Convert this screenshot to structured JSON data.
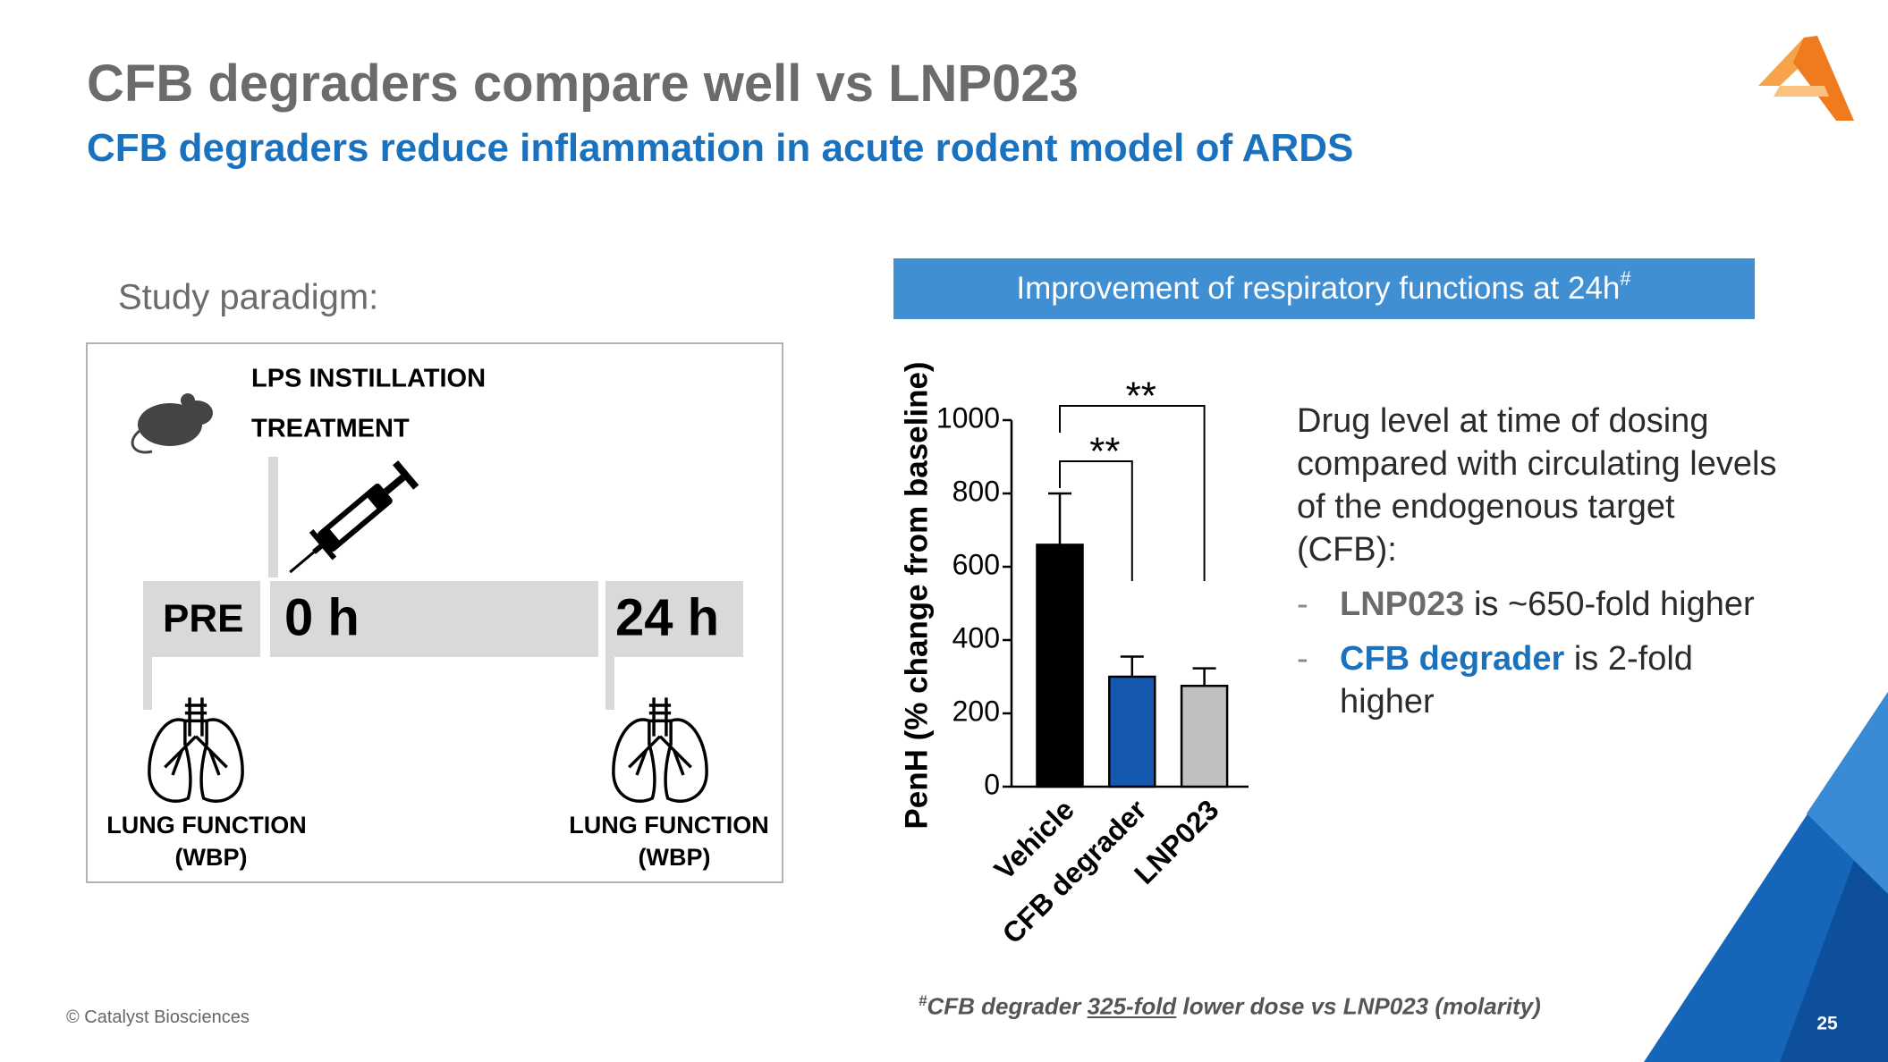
{
  "header": {
    "title": "CFB degraders compare well vs LNP023",
    "subtitle": "CFB degraders reduce inflammation in acute rodent model of ARDS"
  },
  "paradigm": {
    "label": "Study paradigm:",
    "lps": "LPS INSTILLATION",
    "treatment": "TREATMENT",
    "pre": "PRE",
    "t0": "0 h",
    "t24": "24 h",
    "lung_left": "LUNG FUNCTION",
    "wbp_left": "(WBP)",
    "lung_right": "LUNG FUNCTION",
    "wbp_right": "(WBP)"
  },
  "panel": {
    "heading": "Improvement of respiratory functions at 24h",
    "heading_sup": "#"
  },
  "chart_data": {
    "type": "bar",
    "y_label": "PenH (% change from baseline)",
    "categories": [
      "Vehicle",
      "CFB degrader",
      "LNP023"
    ],
    "values": [
      660,
      300,
      275
    ],
    "errors": [
      140,
      55,
      48
    ],
    "colors": [
      "#000000",
      "#1558b0",
      "#c0c0c0"
    ],
    "ylim": [
      0,
      1000
    ],
    "yticks": [
      0,
      200,
      400,
      600,
      800,
      1000
    ],
    "significance": [
      {
        "from": 0,
        "to": 1,
        "label": "**"
      },
      {
        "from": 0,
        "to": 2,
        "label": "**"
      }
    ]
  },
  "notes": {
    "intro": "Drug level at time of dosing compared with circulating levels of the endogenous target (CFB):",
    "bullets": [
      {
        "dash": "-",
        "strong": "LNP023",
        "rest": "is ~650-fold higher"
      },
      {
        "dash": "-",
        "strong": "CFB degrader",
        "rest": "is 2-fold higher"
      }
    ]
  },
  "footnote": {
    "sup": "#",
    "pre": "CFB degrader",
    "underlined": "325-fold",
    "post": "lower dose vs LNP023 (molarity)"
  },
  "footer": {
    "copyright": "© Catalyst Biosciences",
    "page": "25"
  }
}
